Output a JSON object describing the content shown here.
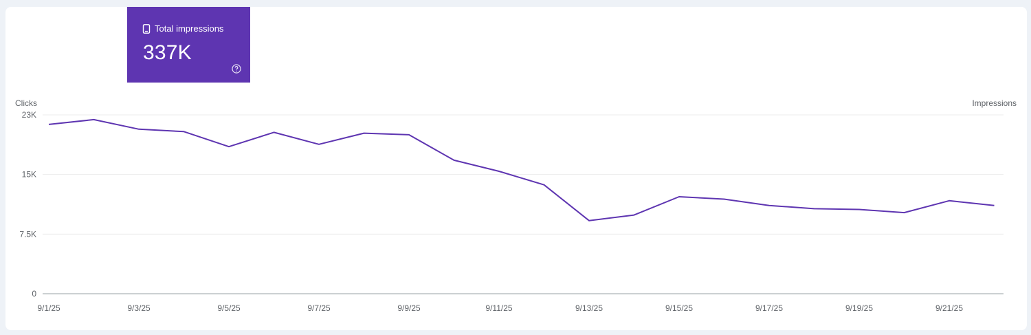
{
  "metric": {
    "label": "Total impressions",
    "value": "337K",
    "icon": "phone-icon",
    "help_icon": "help-circle-icon",
    "color": "#5e35b1"
  },
  "chart_data": {
    "type": "line",
    "left_axis_label": "Clicks",
    "right_axis_label": "Impressions",
    "y_ticks": [
      "0",
      "7.5K",
      "15K",
      "23K"
    ],
    "y_tick_values": [
      0,
      7500,
      15000,
      22500
    ],
    "ylim": [
      0,
      22500
    ],
    "x": [
      "9/1/25",
      "9/2/25",
      "9/3/25",
      "9/4/25",
      "9/5/25",
      "9/6/25",
      "9/7/25",
      "9/8/25",
      "9/9/25",
      "9/10/25",
      "9/11/25",
      "9/12/25",
      "9/13/25",
      "9/14/25",
      "9/15/25",
      "9/16/25",
      "9/17/25",
      "9/18/25",
      "9/19/25",
      "9/20/25",
      "9/21/25",
      "9/22/25"
    ],
    "x_tick_labels": [
      "9/1/25",
      "9/3/25",
      "9/5/25",
      "9/7/25",
      "9/9/25",
      "9/11/25",
      "9/13/25",
      "9/15/25",
      "9/17/25",
      "9/19/25",
      "9/21/25"
    ],
    "series": [
      {
        "color": "#5e35b1",
        "values": [
          21300,
          21900,
          20700,
          20400,
          18500,
          20300,
          18800,
          20200,
          20000,
          16800,
          15400,
          13700,
          9200,
          9900,
          12200,
          11900,
          11100,
          10700,
          10600,
          10200,
          11700,
          11100
        ]
      }
    ],
    "grid": true
  }
}
